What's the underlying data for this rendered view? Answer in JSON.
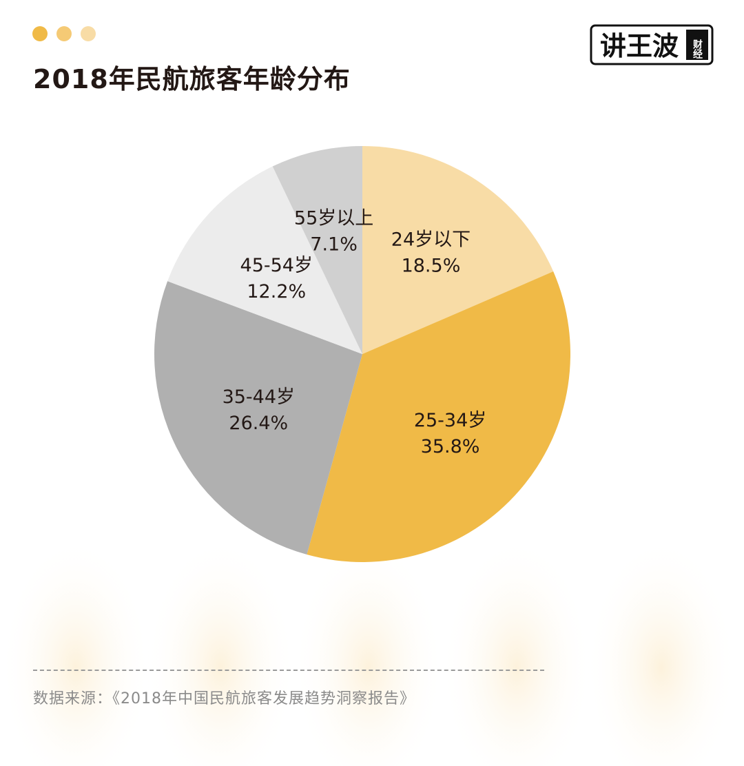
{
  "header": {
    "title": "2018年民航旅客年龄分布",
    "dot_colors": [
      "#f0ba47",
      "#f5ca75",
      "#f8dca6"
    ]
  },
  "logo": {
    "main_text": "讲王波",
    "sub_text": "财经"
  },
  "chart_data": {
    "type": "pie",
    "title": "2018年民航旅客年龄分布",
    "unit": "%",
    "start": "12 o'clock",
    "direction": "clockwise",
    "slices": [
      {
        "label": "24岁以下",
        "value": 18.5,
        "display": "18.5%",
        "color": "#f8dca6"
      },
      {
        "label": "25-34岁",
        "value": 35.8,
        "display": "35.8%",
        "color": "#f0ba47"
      },
      {
        "label": "35-44岁",
        "value": 26.4,
        "display": "26.4%",
        "color": "#b0b0b0"
      },
      {
        "label": "45-54岁",
        "value": 12.2,
        "display": "12.2%",
        "color": "#ececec"
      },
      {
        "label": "55岁以上",
        "value": 7.1,
        "display": "7.1%",
        "color": "#d0d0d0"
      }
    ]
  },
  "footer": {
    "source": "数据来源：《2018年中国民航旅客发展趋势洞察报告》"
  }
}
